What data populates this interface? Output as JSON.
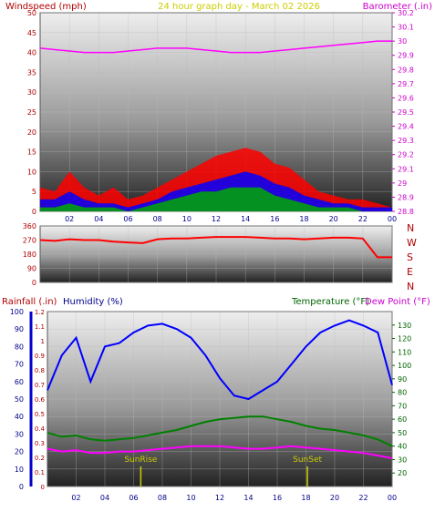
{
  "header": {
    "left_title": "Windspeed (mph)",
    "center_title": "24 hour graph day - March 02 2026",
    "right_title": "Barometer (.in)"
  },
  "colors": {
    "wind_gust": "#ff0000",
    "wind_avg": "#0000ff",
    "wind_min": "#00aa00",
    "barometer": "#ff00ff",
    "direction": "#ff0000",
    "humidity": "#0000ff",
    "temperature": "#008000",
    "dewpoint": "#ff00ff",
    "rainfall": "#0000aa",
    "sun_marker": "#cccc00"
  },
  "chart_data": [
    {
      "type": "line",
      "name": "wind-barometer",
      "title": "24 hour graph day - March 02 2026",
      "ylabel_left": "Windspeed (mph)",
      "ylabel_right": "Barometer (.in)",
      "x_ticks": [
        "02",
        "04",
        "06",
        "08",
        "10",
        "12",
        "14",
        "16",
        "18",
        "20",
        "22",
        "00"
      ],
      "ylim_left": [
        0,
        50
      ],
      "yticks_left": [
        "0",
        "5",
        "10",
        "15",
        "20",
        "25",
        "30",
        "35",
        "40",
        "45",
        "50"
      ],
      "ylim_right": [
        28.8,
        30.2
      ],
      "yticks_right": [
        "28.8",
        "28.9",
        "29",
        "29.1",
        "29.2",
        "29.3",
        "29.4",
        "29.5",
        "29.6",
        "29.7",
        "29.8",
        "29.9",
        "30",
        "30.1",
        "30.2"
      ],
      "grid": true,
      "x_hours": [
        0,
        1,
        2,
        3,
        4,
        5,
        6,
        7,
        8,
        9,
        10,
        11,
        12,
        13,
        14,
        15,
        16,
        17,
        18,
        19,
        20,
        21,
        22,
        23,
        24
      ],
      "series": [
        {
          "key": "wind_gust",
          "axis": "left",
          "values": [
            6,
            5,
            10,
            6,
            4,
            6,
            3,
            4,
            6,
            8,
            10,
            12,
            14,
            15,
            16,
            15,
            12,
            11,
            8,
            5,
            4,
            3,
            3,
            2,
            1
          ]
        },
        {
          "key": "wind_avg",
          "axis": "left",
          "values": [
            3,
            3,
            5,
            3,
            2,
            2,
            1,
            2,
            3,
            5,
            6,
            7,
            8,
            9,
            10,
            9,
            7,
            6,
            4,
            3,
            2,
            2,
            1,
            1,
            1
          ]
        },
        {
          "key": "wind_min",
          "axis": "left",
          "values": [
            1,
            1,
            2,
            1,
            1,
            1,
            0,
            1,
            2,
            3,
            4,
            5,
            5,
            6,
            6,
            6,
            4,
            3,
            2,
            1,
            1,
            1,
            0,
            0,
            0
          ]
        },
        {
          "key": "barometer",
          "axis": "right",
          "values": [
            29.95,
            29.94,
            29.93,
            29.92,
            29.92,
            29.92,
            29.93,
            29.94,
            29.95,
            29.95,
            29.95,
            29.94,
            29.93,
            29.92,
            29.92,
            29.92,
            29.93,
            29.94,
            29.95,
            29.96,
            29.97,
            29.98,
            29.99,
            30.0,
            30.0
          ]
        }
      ]
    },
    {
      "type": "line",
      "name": "wind-direction",
      "ylim": [
        0,
        360
      ],
      "yticks": [
        "0",
        "90",
        "180",
        "270",
        "360"
      ],
      "direction_labels": [
        "N",
        "W",
        "S",
        "E",
        "N"
      ],
      "x_hours": [
        0,
        1,
        2,
        3,
        4,
        5,
        6,
        7,
        8,
        9,
        10,
        11,
        12,
        13,
        14,
        15,
        16,
        17,
        18,
        19,
        20,
        21,
        22,
        23,
        24
      ],
      "values": [
        270,
        265,
        275,
        270,
        270,
        260,
        255,
        250,
        275,
        280,
        280,
        285,
        290,
        290,
        290,
        285,
        280,
        280,
        275,
        280,
        285,
        285,
        280,
        160,
        160
      ]
    },
    {
      "type": "line",
      "name": "humidity-temperature",
      "title_left_1": "Rainfall (.in)",
      "title_left_2": "Humidity (%)",
      "title_right_1": "Temperature (°F)",
      "title_right_2": "Dew Point (°F)",
      "x_ticks": [
        "02",
        "04",
        "06",
        "08",
        "10",
        "12",
        "14",
        "16",
        "18",
        "20",
        "22",
        "00"
      ],
      "ylim_humidity": [
        0,
        100
      ],
      "yticks_humidity": [
        "0",
        "10",
        "20",
        "30",
        "40",
        "50",
        "60",
        "70",
        "80",
        "90",
        "100"
      ],
      "ylim_rain": [
        0,
        1.2
      ],
      "yticks_rain": [
        "0",
        "0.1",
        "0.2",
        "0.3",
        "0.4",
        "0.5",
        "0.6",
        "0.7",
        "0.8",
        "0.9",
        "1",
        "1.1",
        "1.2"
      ],
      "ylim_temp": [
        10,
        140
      ],
      "yticks_temp": [
        "20",
        "30",
        "40",
        "50",
        "60",
        "70",
        "80",
        "90",
        "100",
        "110",
        "120",
        "130"
      ],
      "annotations": [
        {
          "label": "SunRise",
          "hour": 6.5
        },
        {
          "label": "SunSet",
          "hour": 18.1
        }
      ],
      "x_hours": [
        0,
        1,
        2,
        3,
        4,
        5,
        6,
        7,
        8,
        9,
        10,
        11,
        12,
        13,
        14,
        15,
        16,
        17,
        18,
        19,
        20,
        21,
        22,
        23,
        24
      ],
      "series": [
        {
          "key": "humidity",
          "axis": "humidity",
          "values": [
            55,
            75,
            85,
            60,
            80,
            82,
            88,
            92,
            93,
            90,
            85,
            75,
            62,
            52,
            50,
            55,
            60,
            70,
            80,
            88,
            92,
            95,
            92,
            88,
            58
          ]
        },
        {
          "key": "temperature",
          "axis": "temp",
          "values": [
            50,
            47,
            48,
            45,
            44,
            45,
            46,
            48,
            50,
            52,
            55,
            58,
            60,
            61,
            62,
            62,
            60,
            58,
            55,
            53,
            52,
            50,
            48,
            45,
            40
          ]
        },
        {
          "key": "dewpoint",
          "axis": "temp",
          "values": [
            38,
            36,
            37,
            35,
            35,
            36,
            36,
            37,
            38,
            39,
            40,
            40,
            40,
            39,
            38,
            38,
            39,
            40,
            39,
            38,
            37,
            36,
            35,
            33,
            31
          ]
        }
      ]
    }
  ]
}
